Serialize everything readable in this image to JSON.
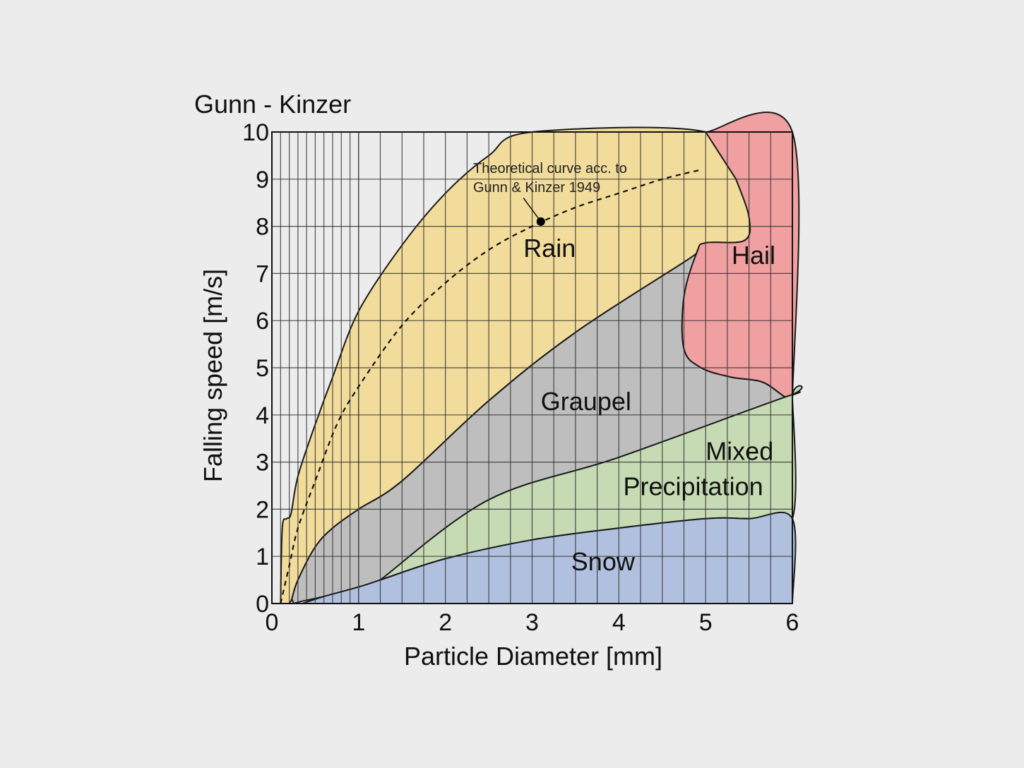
{
  "chart_data": {
    "type": "area",
    "title": "Gunn - Kinzer",
    "xlabel": "Particle Diameter [mm]",
    "ylabel": "Falling speed [m/s]",
    "xlim": [
      0,
      6
    ],
    "ylim": [
      0,
      10
    ],
    "x_ticks": [
      "0",
      "1",
      "2",
      "3",
      "4",
      "5",
      "6"
    ],
    "y_ticks": [
      "0",
      "1",
      "2",
      "3",
      "4",
      "5",
      "6",
      "7",
      "8",
      "9",
      "10"
    ],
    "grid": true,
    "colors": {
      "rain": "#f2dc9b",
      "graupel": "#bebebe",
      "hail": "#f0a0a0",
      "mixed": "#c6dbb4",
      "snow": "#b0c0de",
      "background": "#ececec",
      "plot_background": "#ececec"
    },
    "regions": [
      {
        "name": "Rain",
        "color": "#f2dc9b",
        "points": [
          [
            0.1,
            0
          ],
          [
            0.12,
            1.6
          ],
          [
            0.17,
            1.8
          ],
          [
            0.22,
            1.9
          ],
          [
            0.3,
            2.7
          ],
          [
            0.5,
            3.8
          ],
          [
            0.7,
            4.8
          ],
          [
            1.0,
            6.2
          ],
          [
            1.5,
            7.6
          ],
          [
            2.0,
            8.7
          ],
          [
            2.5,
            9.5
          ],
          [
            3.0,
            10.0
          ],
          [
            5.0,
            10.0
          ],
          [
            5.35,
            9.0
          ],
          [
            5.5,
            8.2
          ],
          [
            5.45,
            7.7
          ],
          [
            5.0,
            7.65
          ],
          [
            4.9,
            7.45
          ],
          [
            4.8,
            7.3
          ],
          [
            3.5,
            5.75
          ],
          [
            2.5,
            4.3
          ],
          [
            1.5,
            2.6
          ],
          [
            1.0,
            2.0
          ],
          [
            0.7,
            1.6
          ],
          [
            0.5,
            1.2
          ],
          [
            0.3,
            0.5
          ],
          [
            0.23,
            0.1
          ],
          [
            0.2,
            0
          ]
        ]
      },
      {
        "name": "Graupel",
        "color": "#bebebe",
        "points": [
          [
            0.23,
            0.1
          ],
          [
            0.3,
            0.5
          ],
          [
            0.5,
            1.2
          ],
          [
            0.7,
            1.6
          ],
          [
            1.0,
            2.0
          ],
          [
            1.5,
            2.6
          ],
          [
            2.5,
            4.3
          ],
          [
            3.5,
            5.75
          ],
          [
            4.8,
            7.3
          ],
          [
            4.9,
            7.45
          ],
          [
            4.75,
            6.5
          ],
          [
            4.75,
            5.4
          ],
          [
            4.95,
            5.0
          ],
          [
            5.3,
            4.8
          ],
          [
            5.65,
            4.7
          ],
          [
            5.9,
            4.4
          ],
          [
            5.95,
            4.4
          ],
          [
            4.0,
            3.1
          ],
          [
            2.5,
            2.2
          ],
          [
            1.25,
            0.5
          ],
          [
            1.0,
            0.35
          ],
          [
            0.6,
            0.15
          ],
          [
            0.35,
            0.05
          ],
          [
            0.25,
            0
          ]
        ]
      },
      {
        "name": "Hail",
        "color": "#f0a0a0",
        "points": [
          [
            5.0,
            10.0
          ],
          [
            6.0,
            10.0
          ],
          [
            6.0,
            4.35
          ],
          [
            5.95,
            4.4
          ],
          [
            5.9,
            4.4
          ],
          [
            5.65,
            4.7
          ],
          [
            5.3,
            4.8
          ],
          [
            4.95,
            5.0
          ],
          [
            4.75,
            5.4
          ],
          [
            4.75,
            6.5
          ],
          [
            4.9,
            7.45
          ],
          [
            5.0,
            7.65
          ],
          [
            5.45,
            7.7
          ],
          [
            5.5,
            8.2
          ],
          [
            5.35,
            9.0
          ]
        ]
      },
      {
        "name": "Mixed Precipitation",
        "color": "#c6dbb4",
        "points": [
          [
            1.25,
            0.5
          ],
          [
            2.5,
            2.2
          ],
          [
            4.0,
            3.1
          ],
          [
            5.95,
            4.4
          ],
          [
            6.0,
            4.35
          ],
          [
            6.0,
            1.8
          ],
          [
            5.5,
            1.8
          ],
          [
            5.0,
            1.8
          ],
          [
            4.0,
            1.6
          ],
          [
            3.0,
            1.35
          ],
          [
            2.0,
            0.95
          ],
          [
            1.25,
            0.5
          ]
        ]
      },
      {
        "name": "Snow",
        "color": "#b0c0de",
        "points": [
          [
            0.35,
            0
          ],
          [
            0.6,
            0.15
          ],
          [
            1.0,
            0.35
          ],
          [
            1.25,
            0.5
          ],
          [
            2.0,
            0.95
          ],
          [
            3.0,
            1.35
          ],
          [
            4.0,
            1.6
          ],
          [
            5.0,
            1.8
          ],
          [
            5.5,
            1.8
          ],
          [
            6.0,
            1.8
          ],
          [
            6.0,
            0
          ]
        ]
      }
    ],
    "theoretical_curve": {
      "label_line1": "Theoretical curve acc. to",
      "label_line2": "Gunn & Kinzer 1949",
      "marker": [
        3.1,
        8.1
      ],
      "points": [
        [
          0.1,
          0
        ],
        [
          0.2,
          0.8
        ],
        [
          0.3,
          1.6
        ],
        [
          0.5,
          2.6
        ],
        [
          0.75,
          3.8
        ],
        [
          1.0,
          4.6
        ],
        [
          1.5,
          5.9
        ],
        [
          2.0,
          6.8
        ],
        [
          2.5,
          7.5
        ],
        [
          3.0,
          8.0
        ],
        [
          3.5,
          8.4
        ],
        [
          4.0,
          8.7
        ],
        [
          4.5,
          9.0
        ],
        [
          4.95,
          9.2
        ]
      ]
    },
    "labels": [
      {
        "text": "Rain",
        "x": 2.9,
        "y": 7.35,
        "anchor": "start"
      },
      {
        "text": "Hail",
        "x": 5.3,
        "y": 7.2,
        "anchor": "start"
      },
      {
        "text": "Graupel",
        "x": 3.1,
        "y": 4.1,
        "anchor": "start"
      },
      {
        "text": "Mixed",
        "x": 5.0,
        "y": 3.05,
        "anchor": "start"
      },
      {
        "text": "Precipitation",
        "x": 4.05,
        "y": 2.3,
        "anchor": "start"
      },
      {
        "text": "Snow",
        "x": 3.45,
        "y": 0.7,
        "anchor": "start"
      }
    ]
  }
}
